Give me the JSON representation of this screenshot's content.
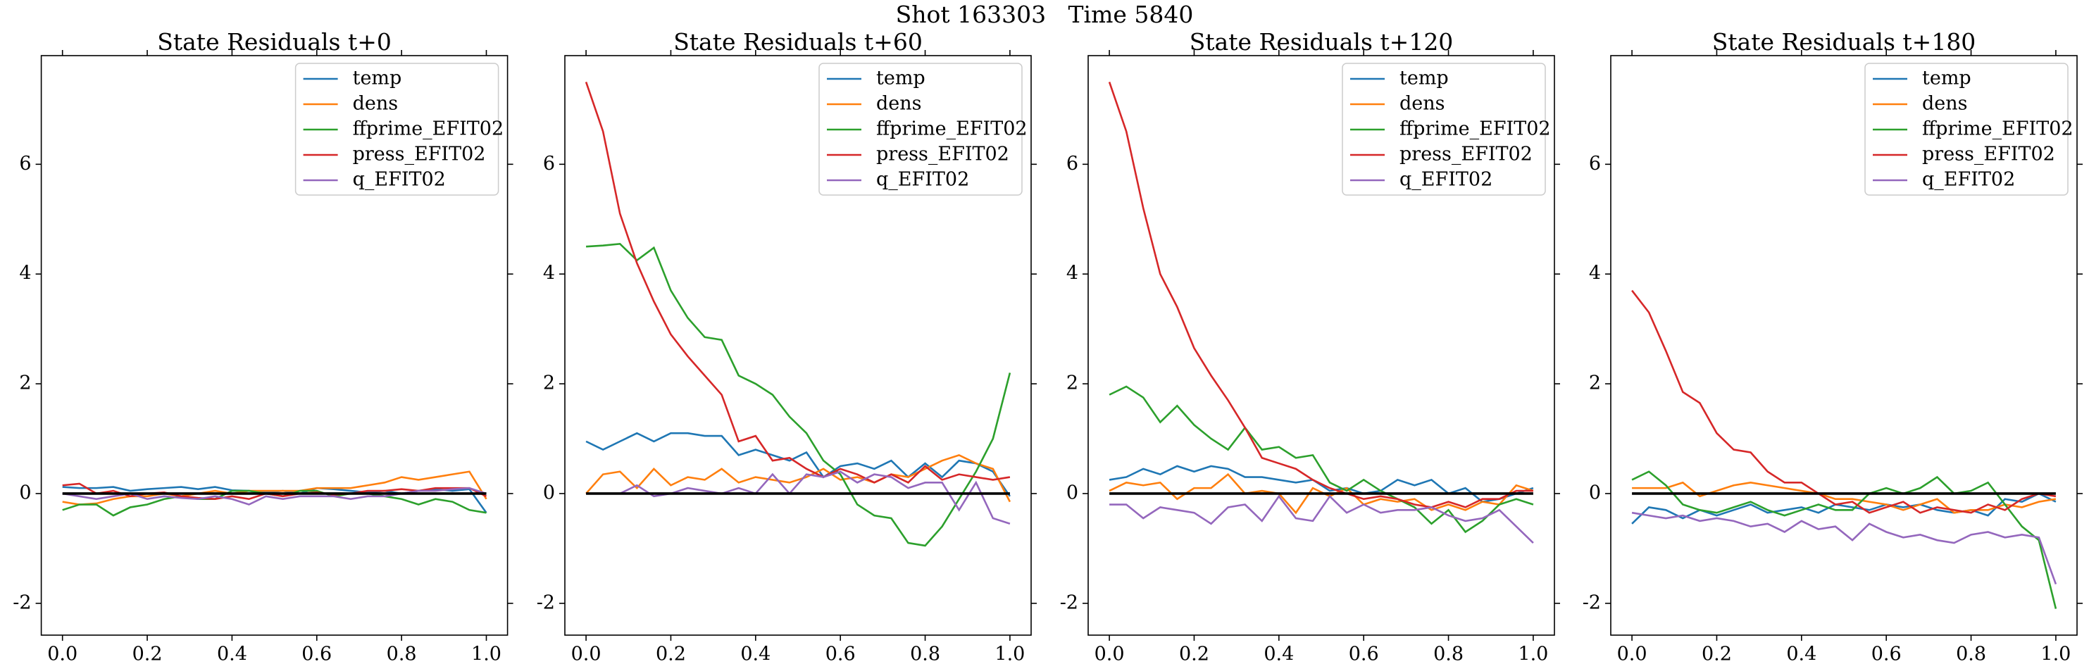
{
  "title": "Shot 163303   Time 5840",
  "chart_data": [
    {
      "type": "line",
      "title": "State Residuals t+0",
      "x": [
        0,
        0.04,
        0.08,
        0.12,
        0.16,
        0.2,
        0.24,
        0.28,
        0.32,
        0.36,
        0.4,
        0.44,
        0.48,
        0.52,
        0.56,
        0.6,
        0.64,
        0.68,
        0.72,
        0.76,
        0.8,
        0.84,
        0.88,
        0.92,
        0.96,
        1
      ],
      "series": [
        {
          "name": "temp",
          "color": "#1f77b4",
          "values": [
            0.12,
            0.1,
            0.1,
            0.12,
            0.05,
            0.08,
            0.1,
            0.12,
            0.08,
            0.12,
            0.06,
            0.05,
            0.02,
            0.05,
            0.0,
            0.1,
            0.08,
            0.05,
            0.02,
            0.05,
            0.0,
            0.05,
            0.08,
            0.05,
            0.08,
            -0.35
          ]
        },
        {
          "name": "dens",
          "color": "#ff7f0e",
          "values": [
            -0.15,
            -0.2,
            -0.18,
            -0.1,
            -0.05,
            -0.05,
            0.0,
            -0.05,
            0.0,
            0.05,
            0.0,
            0.05,
            0.05,
            0.05,
            0.05,
            0.1,
            0.1,
            0.1,
            0.15,
            0.2,
            0.3,
            0.25,
            0.3,
            0.35,
            0.4,
            -0.1
          ]
        },
        {
          "name": "ffprime_EFIT02",
          "color": "#2ca02c",
          "values": [
            -0.3,
            -0.2,
            -0.2,
            -0.4,
            -0.25,
            -0.2,
            -0.1,
            -0.05,
            -0.1,
            -0.1,
            0.05,
            0.05,
            0.0,
            -0.05,
            0.05,
            0.05,
            -0.05,
            0.0,
            0.0,
            -0.05,
            -0.1,
            -0.2,
            -0.1,
            -0.15,
            -0.3,
            -0.35
          ]
        },
        {
          "name": "press_EFIT02",
          "color": "#d62728",
          "values": [
            0.15,
            0.18,
            0.0,
            0.05,
            -0.05,
            0.0,
            0.02,
            -0.05,
            -0.08,
            -0.1,
            -0.05,
            -0.1,
            0.0,
            -0.05,
            0.0,
            0.02,
            -0.02,
            0.0,
            0.05,
            0.05,
            0.08,
            0.05,
            0.1,
            0.1,
            0.1,
            -0.05
          ]
        },
        {
          "name": "q_EFIT02",
          "color": "#9467bd",
          "values": [
            0.0,
            -0.05,
            -0.1,
            -0.05,
            0.0,
            -0.1,
            -0.05,
            -0.08,
            -0.1,
            -0.05,
            -0.1,
            -0.2,
            -0.05,
            -0.1,
            -0.05,
            -0.05,
            -0.05,
            -0.1,
            -0.05,
            -0.05,
            0.0,
            0.05,
            0.05,
            0.08,
            0.1,
            0.0
          ]
        }
      ],
      "reference_line": {
        "x": [
          0,
          1
        ],
        "y": [
          0,
          0
        ],
        "color": "#000000"
      },
      "xlim": [
        -0.05,
        1.05
      ],
      "ylim": [
        -2.58,
        7.98
      ],
      "xticks": [
        {
          "value": 0,
          "label": "0.0"
        },
        0.2,
        0.4,
        0.6,
        0.8,
        {
          "value": 1,
          "label": "1.0"
        }
      ],
      "yticks": [
        -2,
        0,
        2,
        4,
        6
      ],
      "legend": "upper right",
      "grid": false
    },
    {
      "type": "line",
      "title": "State Residuals t+60",
      "x": [
        0,
        0.04,
        0.08,
        0.12,
        0.16,
        0.2,
        0.24,
        0.28,
        0.32,
        0.36,
        0.4,
        0.44,
        0.48,
        0.52,
        0.56,
        0.6,
        0.64,
        0.68,
        0.72,
        0.76,
        0.8,
        0.84,
        0.88,
        0.92,
        0.96,
        1
      ],
      "series": [
        {
          "name": "temp",
          "color": "#1f77b4",
          "values": [
            0.95,
            0.8,
            0.95,
            1.1,
            0.95,
            1.1,
            1.1,
            1.05,
            1.05,
            0.7,
            0.8,
            0.7,
            0.6,
            0.75,
            0.3,
            0.5,
            0.55,
            0.45,
            0.6,
            0.3,
            0.55,
            0.3,
            0.6,
            0.55,
            0.4,
            -0.05
          ]
        },
        {
          "name": "dens",
          "color": "#ff7f0e",
          "values": [
            0.0,
            0.35,
            0.4,
            0.1,
            0.45,
            0.15,
            0.3,
            0.25,
            0.45,
            0.2,
            0.3,
            0.25,
            0.2,
            0.3,
            0.45,
            0.25,
            0.3,
            0.2,
            0.35,
            0.3,
            0.45,
            0.6,
            0.7,
            0.55,
            0.45,
            -0.15
          ]
        },
        {
          "name": "ffprime_EFIT02",
          "color": "#2ca02c",
          "values": [
            4.5,
            4.52,
            4.55,
            4.25,
            4.48,
            3.7,
            3.2,
            2.85,
            2.8,
            2.15,
            2.0,
            1.8,
            1.4,
            1.1,
            0.6,
            0.35,
            -0.2,
            -0.4,
            -0.45,
            -0.9,
            -0.95,
            -0.6,
            -0.1,
            0.4,
            1.0,
            2.2
          ]
        },
        {
          "name": "press_EFIT02",
          "color": "#d62728",
          "values": [
            7.5,
            6.6,
            5.1,
            4.2,
            3.5,
            2.9,
            2.5,
            2.15,
            1.8,
            0.95,
            1.05,
            0.6,
            0.65,
            0.45,
            0.3,
            0.45,
            0.35,
            0.2,
            0.35,
            0.2,
            0.5,
            0.25,
            0.35,
            0.3,
            0.25,
            0.3
          ]
        },
        {
          "name": "q_EFIT02",
          "color": "#9467bd",
          "values": [
            0.0,
            0.0,
            0.0,
            0.15,
            -0.05,
            0.0,
            0.1,
            0.05,
            0.0,
            0.1,
            0.0,
            0.35,
            0.0,
            0.35,
            0.3,
            0.4,
            0.2,
            0.35,
            0.3,
            0.1,
            0.2,
            0.2,
            -0.3,
            0.2,
            -0.45,
            -0.55
          ]
        }
      ],
      "reference_line": {
        "x": [
          0,
          1
        ],
        "y": [
          0,
          0
        ],
        "color": "#000000"
      },
      "xlim": [
        -0.05,
        1.05
      ],
      "ylim": [
        -2.58,
        7.98
      ],
      "xticks": [
        {
          "value": 0,
          "label": "0.0"
        },
        0.2,
        0.4,
        0.6,
        0.8,
        {
          "value": 1,
          "label": "1.0"
        }
      ],
      "yticks": [
        -2,
        0,
        2,
        4,
        6
      ],
      "legend": "upper right",
      "grid": false
    },
    {
      "type": "line",
      "title": "State Residuals t+120",
      "x": [
        0,
        0.04,
        0.08,
        0.12,
        0.16,
        0.2,
        0.24,
        0.28,
        0.32,
        0.36,
        0.4,
        0.44,
        0.48,
        0.52,
        0.56,
        0.6,
        0.64,
        0.68,
        0.72,
        0.76,
        0.8,
        0.84,
        0.88,
        0.92,
        0.96,
        1
      ],
      "series": [
        {
          "name": "temp",
          "color": "#1f77b4",
          "values": [
            0.25,
            0.3,
            0.45,
            0.35,
            0.5,
            0.4,
            0.5,
            0.45,
            0.3,
            0.3,
            0.25,
            0.2,
            0.25,
            0.05,
            0.1,
            0.0,
            0.05,
            0.25,
            0.15,
            0.25,
            0.0,
            0.1,
            -0.15,
            -0.1,
            0.0,
            0.1
          ]
        },
        {
          "name": "dens",
          "color": "#ff7f0e",
          "values": [
            0.05,
            0.2,
            0.15,
            0.2,
            -0.1,
            0.1,
            0.1,
            0.35,
            0.0,
            0.05,
            0.0,
            -0.35,
            0.1,
            -0.05,
            0.1,
            -0.2,
            -0.1,
            -0.15,
            -0.1,
            -0.3,
            -0.2,
            -0.3,
            -0.15,
            -0.2,
            0.15,
            0.05
          ]
        },
        {
          "name": "ffprime_EFIT02",
          "color": "#2ca02c",
          "values": [
            1.8,
            1.95,
            1.75,
            1.3,
            1.6,
            1.25,
            1.0,
            0.8,
            1.2,
            0.8,
            0.85,
            0.65,
            0.7,
            0.2,
            0.05,
            0.25,
            0.05,
            -0.1,
            -0.25,
            -0.55,
            -0.3,
            -0.7,
            -0.5,
            -0.2,
            -0.1,
            -0.2
          ]
        },
        {
          "name": "press_EFIT02",
          "color": "#d62728",
          "values": [
            7.5,
            6.6,
            5.2,
            4.0,
            3.4,
            2.65,
            2.15,
            1.7,
            1.2,
            0.65,
            0.55,
            0.45,
            0.25,
            0.1,
            0.0,
            -0.1,
            -0.05,
            -0.1,
            -0.2,
            -0.25,
            -0.15,
            -0.25,
            -0.1,
            -0.1,
            0.05,
            0.05
          ]
        },
        {
          "name": "q_EFIT02",
          "color": "#9467bd",
          "values": [
            -0.2,
            -0.2,
            -0.45,
            -0.25,
            -0.3,
            -0.35,
            -0.55,
            -0.25,
            -0.2,
            -0.5,
            -0.05,
            -0.45,
            -0.5,
            -0.05,
            -0.35,
            -0.2,
            -0.35,
            -0.3,
            -0.3,
            -0.25,
            -0.4,
            -0.5,
            -0.45,
            -0.3,
            -0.6,
            -0.9
          ]
        }
      ],
      "reference_line": {
        "x": [
          0,
          1
        ],
        "y": [
          0,
          0
        ],
        "color": "#000000"
      },
      "xlim": [
        -0.05,
        1.05
      ],
      "ylim": [
        -2.58,
        7.98
      ],
      "xticks": [
        {
          "value": 0,
          "label": "0.0"
        },
        0.2,
        0.4,
        0.6,
        0.8,
        {
          "value": 1,
          "label": "1.0"
        }
      ],
      "yticks": [
        -2,
        0,
        2,
        4,
        6
      ],
      "legend": "upper right",
      "grid": false
    },
    {
      "type": "line",
      "title": "State Residuals t+180",
      "x": [
        0,
        0.04,
        0.08,
        0.12,
        0.16,
        0.2,
        0.24,
        0.28,
        0.32,
        0.36,
        0.4,
        0.44,
        0.48,
        0.52,
        0.56,
        0.6,
        0.64,
        0.68,
        0.72,
        0.76,
        0.8,
        0.84,
        0.88,
        0.92,
        0.96,
        1
      ],
      "series": [
        {
          "name": "temp",
          "color": "#1f77b4",
          "values": [
            -0.55,
            -0.25,
            -0.3,
            -0.45,
            -0.3,
            -0.4,
            -0.3,
            -0.2,
            -0.35,
            -0.3,
            -0.25,
            -0.35,
            -0.2,
            -0.25,
            -0.3,
            -0.2,
            -0.25,
            -0.2,
            -0.3,
            -0.35,
            -0.3,
            -0.4,
            -0.1,
            -0.15,
            0.0,
            -0.15
          ]
        },
        {
          "name": "dens",
          "color": "#ff7f0e",
          "values": [
            0.1,
            0.1,
            0.1,
            0.2,
            -0.05,
            0.05,
            0.15,
            0.2,
            0.15,
            0.1,
            0.05,
            0.0,
            -0.1,
            -0.1,
            -0.15,
            -0.2,
            -0.3,
            -0.2,
            -0.1,
            -0.35,
            -0.3,
            -0.3,
            -0.2,
            -0.25,
            -0.15,
            -0.1
          ]
        },
        {
          "name": "ffprime_EFIT02",
          "color": "#2ca02c",
          "values": [
            0.25,
            0.4,
            0.15,
            -0.2,
            -0.3,
            -0.35,
            -0.25,
            -0.15,
            -0.3,
            -0.4,
            -0.3,
            -0.2,
            -0.3,
            -0.3,
            0.0,
            0.1,
            0.0,
            0.1,
            0.3,
            0.0,
            0.05,
            0.2,
            -0.2,
            -0.6,
            -0.85,
            -2.1
          ]
        },
        {
          "name": "press_EFIT02",
          "color": "#d62728",
          "values": [
            3.7,
            3.3,
            2.6,
            1.85,
            1.65,
            1.1,
            0.8,
            0.75,
            0.4,
            0.2,
            0.2,
            0.0,
            -0.2,
            -0.15,
            -0.35,
            -0.25,
            -0.15,
            -0.35,
            -0.25,
            -0.3,
            -0.35,
            -0.2,
            -0.3,
            -0.1,
            0.0,
            -0.05
          ]
        },
        {
          "name": "q_EFIT02",
          "color": "#9467bd",
          "values": [
            -0.35,
            -0.4,
            -0.45,
            -0.4,
            -0.5,
            -0.45,
            -0.5,
            -0.6,
            -0.55,
            -0.7,
            -0.5,
            -0.65,
            -0.6,
            -0.85,
            -0.55,
            -0.7,
            -0.8,
            -0.75,
            -0.85,
            -0.9,
            -0.75,
            -0.7,
            -0.8,
            -0.75,
            -0.8,
            -1.65
          ]
        }
      ],
      "reference_line": {
        "x": [
          0,
          1
        ],
        "y": [
          0,
          0
        ],
        "color": "#000000"
      },
      "xlim": [
        -0.05,
        1.05
      ],
      "ylim": [
        -2.58,
        7.98
      ],
      "xticks": [
        {
          "value": 0,
          "label": "0.0"
        },
        0.2,
        0.4,
        0.6,
        0.8,
        {
          "value": 1,
          "label": "1.0"
        }
      ],
      "yticks": [
        -2,
        0,
        2,
        4,
        6
      ],
      "legend": "upper right",
      "grid": false
    }
  ]
}
